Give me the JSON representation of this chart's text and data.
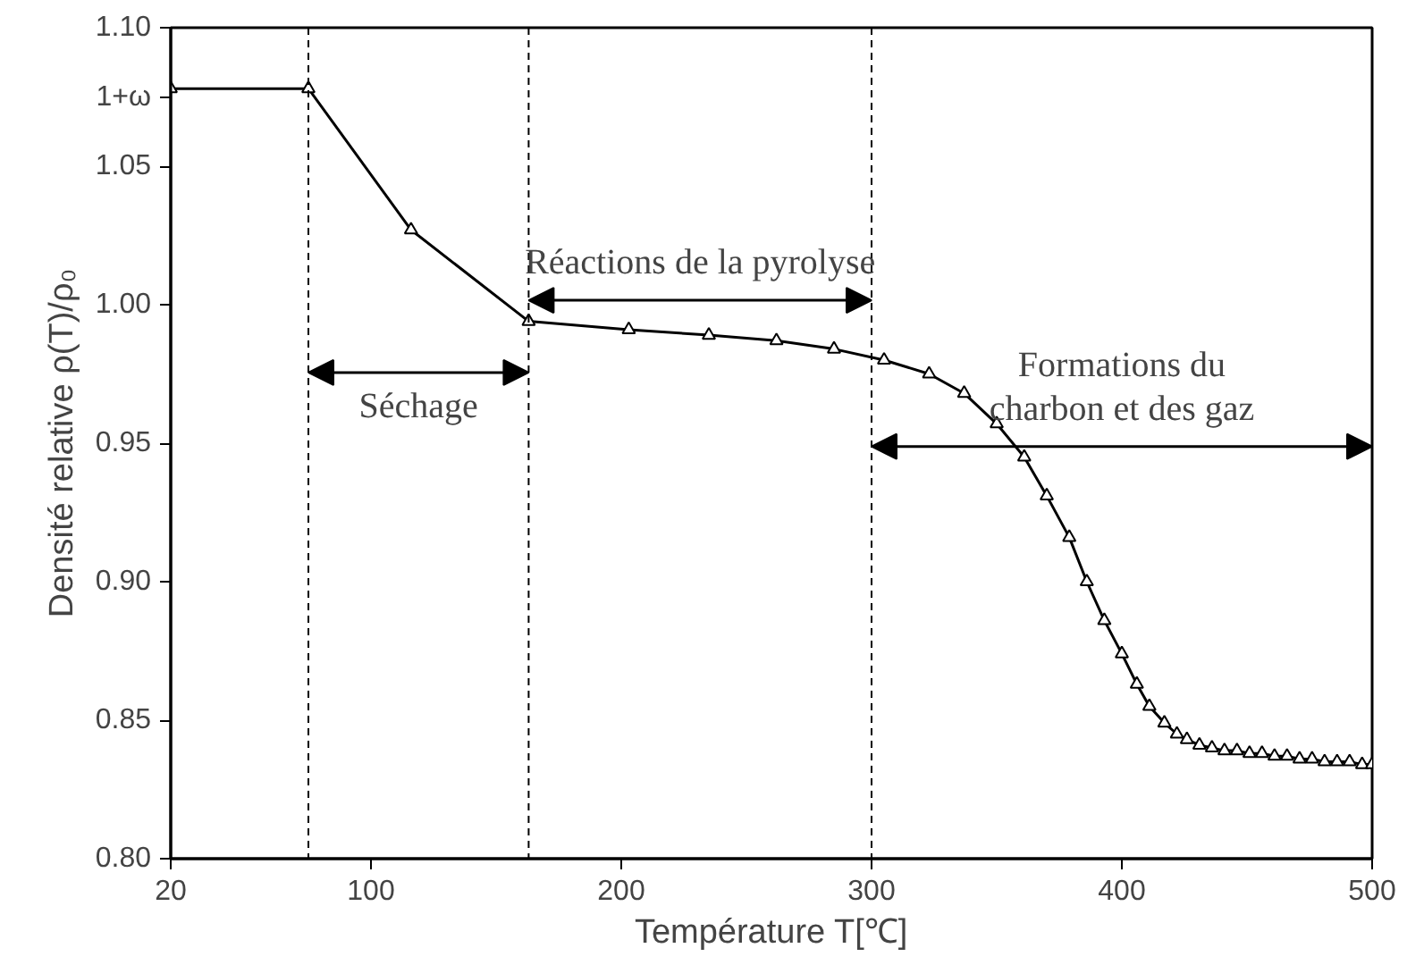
{
  "chart_data": {
    "type": "line",
    "xlabel": "Température T[℃]",
    "ylabel": "Densité relative ρ(T)/ρ₀",
    "xlim": [
      20,
      500
    ],
    "ylim": [
      0.8,
      1.1
    ],
    "xticks": [
      20,
      100,
      200,
      300,
      400,
      500
    ],
    "yticks": [
      {
        "value": 0.8,
        "label": "0.80"
      },
      0.85,
      {
        "value": 0.9,
        "label": "0.90"
      },
      0.95,
      {
        "value": 1.0,
        "label": "1.00"
      },
      1.05,
      {
        "value": 1.075,
        "label": "1+ω"
      },
      {
        "value": 1.1,
        "label": "1.10"
      }
    ],
    "grid": false,
    "marker": "triangle",
    "line_style": "solid",
    "series": [
      {
        "color": "#000000",
        "x": [
          20,
          75,
          116,
          163,
          203,
          235,
          262,
          285,
          305,
          323,
          337,
          350,
          361,
          370,
          379,
          386,
          393,
          400,
          406,
          411,
          417,
          422,
          426,
          431,
          436,
          441,
          446,
          451,
          456,
          461,
          466,
          471,
          476,
          481,
          486,
          491,
          496,
          500
        ],
        "values": [
          1.078,
          1.078,
          1.027,
          0.994,
          0.991,
          0.989,
          0.987,
          0.984,
          0.98,
          0.975,
          0.968,
          0.957,
          0.945,
          0.931,
          0.916,
          0.9,
          0.886,
          0.874,
          0.863,
          0.855,
          0.849,
          0.845,
          0.843,
          0.841,
          0.84,
          0.839,
          0.839,
          0.838,
          0.838,
          0.837,
          0.837,
          0.836,
          0.836,
          0.835,
          0.835,
          0.835,
          0.834,
          0.834
        ]
      }
    ],
    "ref_lines": [
      {
        "axis": "x",
        "value": 75,
        "line_style": "dashed",
        "color": "#000000"
      },
      {
        "axis": "x",
        "value": 163,
        "line_style": "dashed",
        "color": "#000000"
      },
      {
        "axis": "x",
        "value": 300,
        "line_style": "dashed",
        "color": "#000000"
      }
    ],
    "annotations": [
      "Séchage",
      "Réactions de la pyrolyse",
      "Formations du\ncharbon et des gaz"
    ]
  }
}
